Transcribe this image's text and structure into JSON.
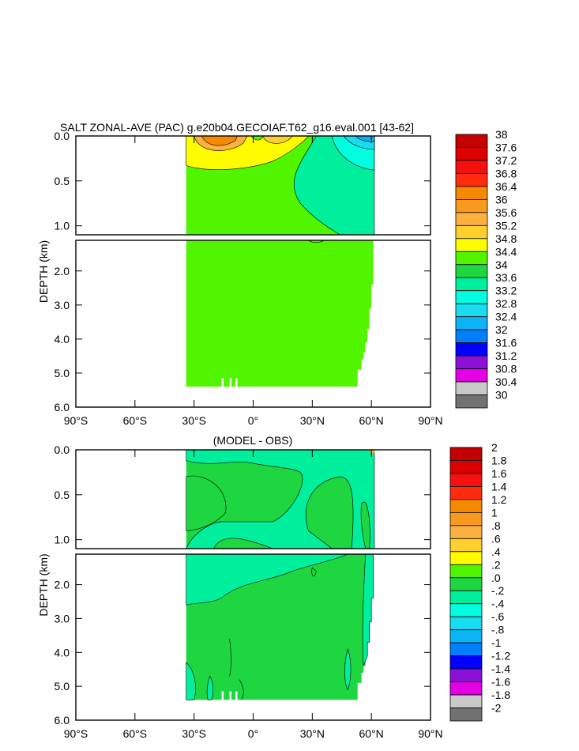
{
  "chart_data": [
    {
      "type": "contour",
      "title": "SALT ZONAL-AVE (PAC) g.e20b04.GECOIAF.T62_g16.eval.001 [43-62]",
      "ylabel": "DEPTH (km)",
      "x_ticks": [
        "90°S",
        "60°S",
        "30°S",
        "0°",
        "30°N",
        "60°N",
        "90°N"
      ],
      "x_tick_values": [
        -90,
        -60,
        -30,
        0,
        30,
        60,
        90
      ],
      "xlim": [
        -90,
        90
      ],
      "upper_ylim": [
        0,
        1.1
      ],
      "lower_ylim": [
        1.1,
        6.0
      ],
      "y_ticks_upper": [
        "0.0",
        "0.5",
        "1.0"
      ],
      "y_tick_values_upper": [
        0,
        0.5,
        1.0
      ],
      "y_ticks_lower": [
        "2.0",
        "3.0",
        "4.0",
        "5.0",
        "6.0"
      ],
      "y_tick_values_lower": [
        2,
        3,
        4,
        5,
        6
      ],
      "colorbar": {
        "labels": [
          "38",
          "37.6",
          "37.2",
          "36.8",
          "36.4",
          "36",
          "35.6",
          "35.2",
          "34.8",
          "34.4",
          "34",
          "33.6",
          "33.2",
          "32.8",
          "32.4",
          "32",
          "31.6",
          "31.2",
          "30.8",
          "30.4",
          "30"
        ],
        "colors": [
          "#c40000",
          "#dd0000",
          "#f51010",
          "#ff2a10",
          "#f58a00",
          "#f99a20",
          "#fbb040",
          "#fdd030",
          "#fffc00",
          "#52f500",
          "#1ed640",
          "#00ef9c",
          "#00fedf",
          "#18dcf0",
          "#0bb4f5",
          "#0080ff",
          "#0000ff",
          "#8c10d8",
          "#e300e3",
          "#c8c8c8",
          "#717171"
        ]
      },
      "fill_base_color": "#52f500"
    },
    {
      "type": "contour",
      "title": "(MODEL - OBS)",
      "ylabel": "DEPTH (km)",
      "x_ticks": [
        "90°S",
        "60°S",
        "30°S",
        "0°",
        "30°N",
        "60°N",
        "90°N"
      ],
      "x_tick_values": [
        -90,
        -60,
        -30,
        0,
        30,
        60,
        90
      ],
      "xlim": [
        -90,
        90
      ],
      "upper_ylim": [
        0,
        1.1
      ],
      "lower_ylim": [
        1.1,
        6.0
      ],
      "y_ticks_upper": [
        "0.0",
        "0.5",
        "1.0"
      ],
      "y_tick_values_upper": [
        0,
        0.5,
        1.0
      ],
      "y_ticks_lower": [
        "2.0",
        "3.0",
        "4.0",
        "5.0",
        "6.0"
      ],
      "y_tick_values_lower": [
        2,
        3,
        4,
        5,
        6
      ],
      "colorbar": {
        "labels": [
          "2",
          "1.8",
          "1.6",
          "1.4",
          "1.2",
          "1",
          ".8",
          ".6",
          ".4",
          ".2",
          ".0",
          "-.2",
          "-.4",
          "-.6",
          "-.8",
          "-1",
          "-1.2",
          "-1.4",
          "-1.6",
          "-1.8",
          "-2"
        ],
        "colors": [
          "#c40000",
          "#dd0000",
          "#f51010",
          "#ff2a10",
          "#f58a00",
          "#f99a20",
          "#fbb040",
          "#fdd030",
          "#fffc00",
          "#52f500",
          "#1ed640",
          "#00ef9c",
          "#00fedf",
          "#18dcf0",
          "#0bb4f5",
          "#0080ff",
          "#0000ff",
          "#8c10d8",
          "#e300e3",
          "#c8c8c8",
          "#717171"
        ]
      },
      "fill_base_color": "#1ed640"
    }
  ]
}
